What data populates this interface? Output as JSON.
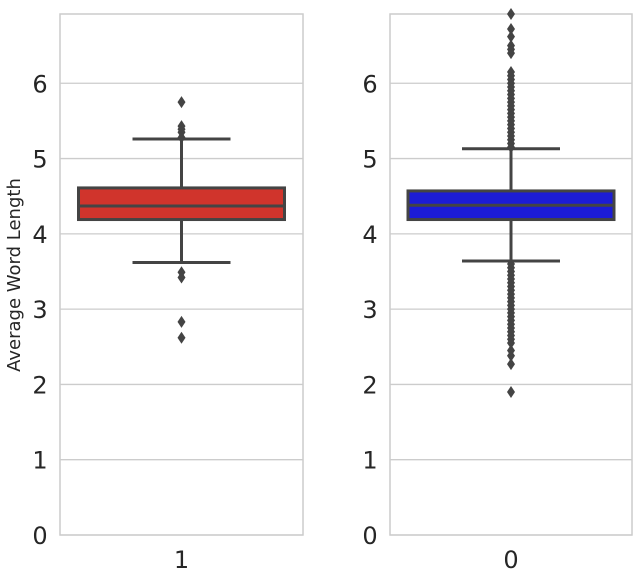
{
  "chart_data": [
    {
      "type": "box",
      "ylabel": "Average Word Length",
      "xlabel": "",
      "ylim": [
        0,
        6.92
      ],
      "yticks": [
        0,
        1,
        2,
        3,
        4,
        5,
        6
      ],
      "category": "1",
      "color": "#d0342c",
      "stats": {
        "whisker_low": 3.62,
        "q1": 4.19,
        "median": 4.37,
        "q3": 4.61,
        "whisker_high": 5.26
      },
      "outliers": [
        5.75,
        5.43,
        5.39,
        5.35,
        5.28,
        3.49,
        3.42,
        2.83,
        2.62
      ],
      "grid": true
    },
    {
      "type": "box",
      "ylabel": "",
      "xlabel": "",
      "ylim": [
        0,
        6.92
      ],
      "yticks": [
        0,
        1,
        2,
        3,
        4,
        5,
        6
      ],
      "category": "0",
      "color": "#1c1cd6",
      "stats": {
        "whisker_low": 3.64,
        "q1": 4.19,
        "median": 4.38,
        "q3": 4.57,
        "whisker_high": 5.13
      },
      "outliers": [
        5.15,
        5.2,
        5.25,
        5.3,
        5.35,
        5.4,
        5.45,
        5.5,
        5.55,
        5.6,
        5.65,
        5.7,
        5.75,
        5.8,
        5.85,
        5.9,
        5.95,
        6.0,
        6.05,
        6.1,
        6.15,
        6.4,
        6.45,
        6.5,
        6.62,
        6.72,
        6.92,
        3.6,
        3.55,
        3.5,
        3.45,
        3.4,
        3.35,
        3.3,
        3.25,
        3.2,
        3.15,
        3.1,
        3.05,
        3.0,
        2.95,
        2.9,
        2.85,
        2.8,
        2.75,
        2.7,
        2.65,
        2.6,
        2.55,
        2.45,
        2.38,
        2.27,
        1.9
      ],
      "grid": true
    }
  ]
}
